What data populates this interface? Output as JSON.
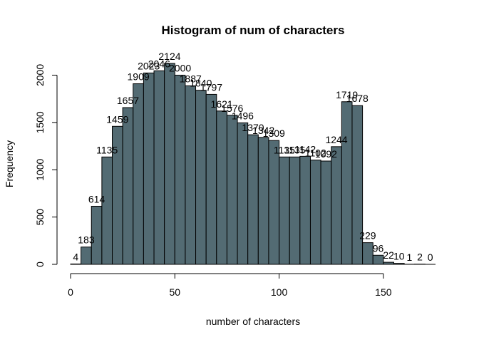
{
  "chart_data": {
    "type": "bar",
    "title": "Histogram of num of characters",
    "xlabel": "number of characters",
    "ylabel": "Frequency",
    "bin_width": 5,
    "bin_start": 0,
    "xlim": [
      0,
      175
    ],
    "ylim": [
      0,
      2124
    ],
    "x_ticks": [
      0,
      50,
      100,
      150
    ],
    "y_ticks": [
      0,
      500,
      1000,
      1500,
      2000
    ],
    "bar_color": "#536b73",
    "grid": false,
    "values": [
      4,
      183,
      614,
      1135,
      1459,
      1657,
      1909,
      2023,
      2046,
      2124,
      2000,
      1887,
      1840,
      1797,
      1621,
      1576,
      1496,
      1370,
      1342,
      1309,
      1135,
      1135,
      1142,
      1102,
      1092,
      1244,
      1719,
      1678,
      229,
      96,
      22,
      10,
      1,
      2,
      0
    ]
  }
}
